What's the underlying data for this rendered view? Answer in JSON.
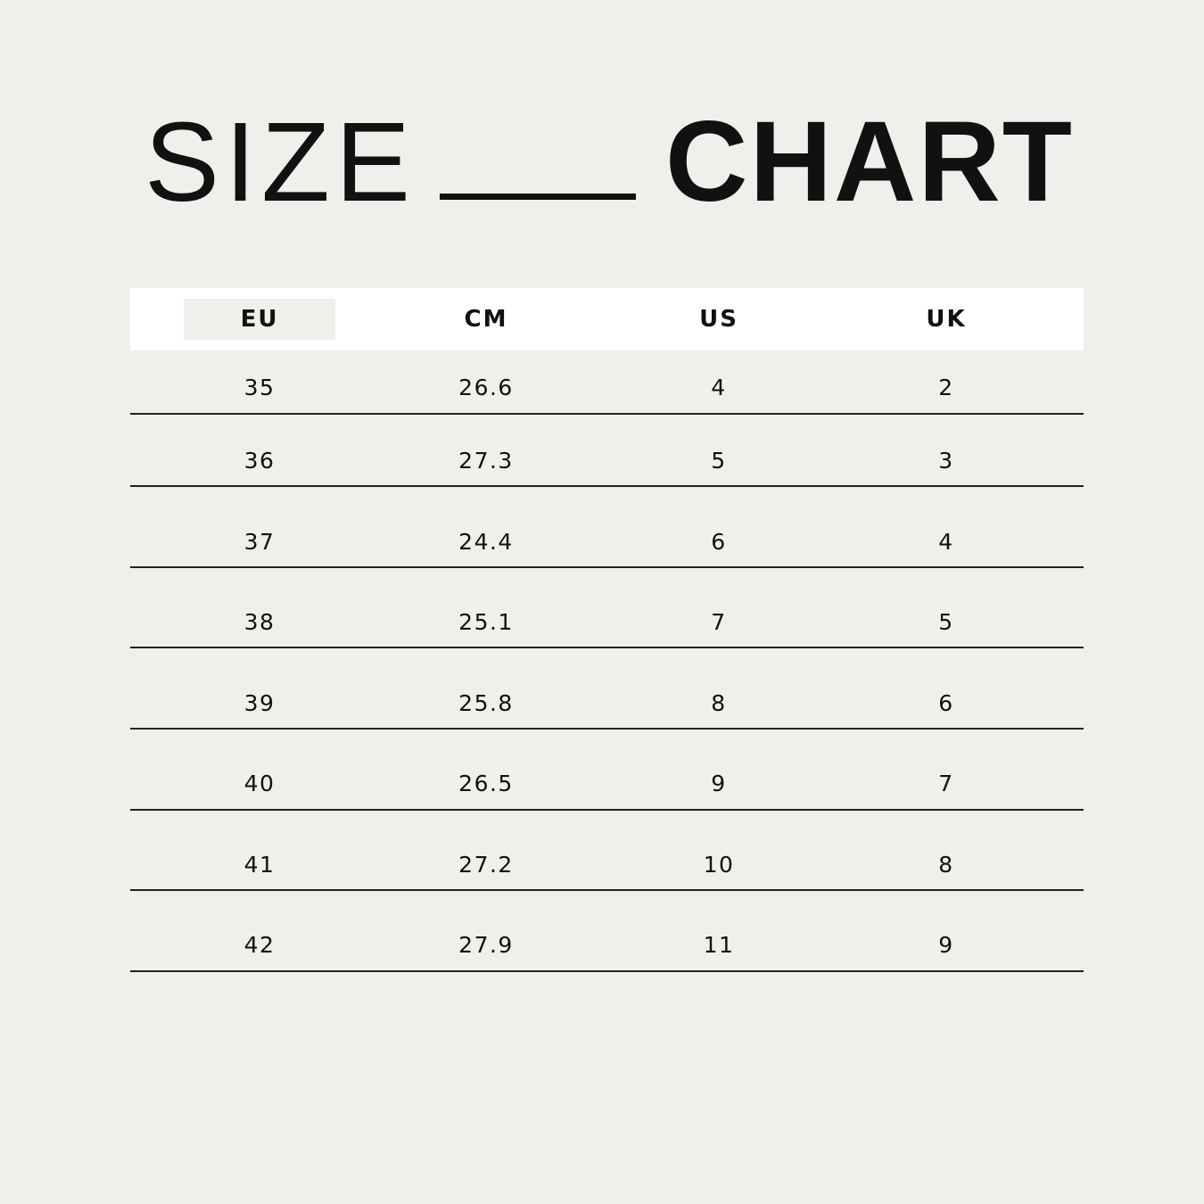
{
  "title": {
    "left": "SIZE",
    "right": "CHART"
  },
  "colors": {
    "background": "#f1efeb",
    "header_background": "#ffffff",
    "highlight": "#f1efeb",
    "text": "#111111"
  },
  "table": {
    "headers": [
      "EU",
      "CM",
      "US",
      "UK"
    ],
    "highlighted_header": "EU",
    "rows": [
      [
        "35",
        "26.6",
        "4",
        "2"
      ],
      [
        "36",
        "27.3",
        "5",
        "3"
      ],
      [
        "37",
        "24.4",
        "6",
        "4"
      ],
      [
        "38",
        "25.1",
        "7",
        "5"
      ],
      [
        "39",
        "25.8",
        "8",
        "6"
      ],
      [
        "40",
        "26.5",
        "9",
        "7"
      ],
      [
        "41",
        "27.2",
        "10",
        "8"
      ],
      [
        "42",
        "27.9",
        "11",
        "9"
      ]
    ]
  }
}
